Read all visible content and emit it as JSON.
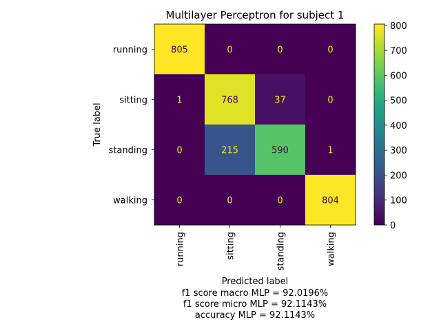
{
  "chart_data": {
    "type": "heatmap",
    "title": "Multilayer Perceptron for subject 1",
    "ylabel": "True label",
    "xlabel": "Predicted label",
    "xlabel_extra": [
      "f1 score macro MLP = 92.0196%",
      "f1 score micro MLP = 92.1143%",
      "accuracy MLP = 92.1143%"
    ],
    "row_labels": [
      "running",
      "sitting",
      "standing",
      "walking"
    ],
    "col_labels": [
      "running",
      "sitting",
      "standing",
      "walking"
    ],
    "matrix": [
      [
        805,
        0,
        0,
        0
      ],
      [
        1,
        768,
        37,
        0
      ],
      [
        0,
        215,
        590,
        1
      ],
      [
        0,
        0,
        0,
        804
      ]
    ],
    "colormap": "viridis",
    "vmin": 0,
    "vmax": 805,
    "colorbar_ticks": [
      0,
      100,
      200,
      300,
      400,
      500,
      600,
      700,
      800
    ],
    "text_color_dark_cells": "#fde725",
    "text_color_light_cells": "#440154"
  }
}
